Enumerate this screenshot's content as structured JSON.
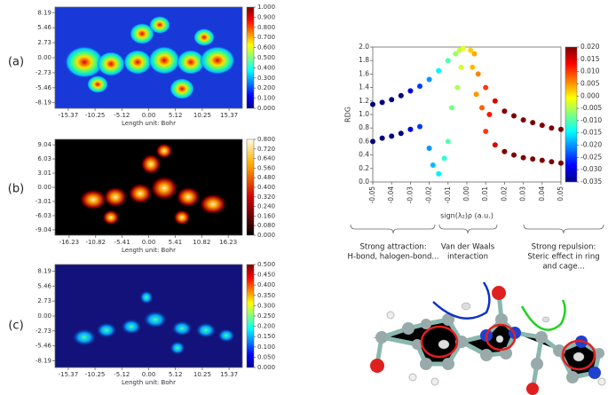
{
  "chart_data": [
    {
      "type": "heatmap",
      "panel_label": "(a)",
      "xlabel": "Length unit: Bohr",
      "colormap": "jet",
      "xlim": [
        -17.9,
        17.9
      ],
      "ylim": [
        -9.2,
        9.2
      ],
      "xticks": [
        -15.37,
        -10.25,
        -5.12,
        {
          "value": 0,
          "label": "0.00"
        },
        5.12,
        10.25,
        15.37
      ],
      "yticks": [
        8.19,
        5.46,
        2.73,
        {
          "value": 0,
          "label": "0.00"
        },
        -2.73,
        -5.46,
        -8.19
      ],
      "clim": [
        0,
        1
      ],
      "cticks": [
        {
          "value": 0,
          "label": "0.000"
        },
        {
          "value": 0.1,
          "label": "0.100"
        },
        {
          "value": 0.2,
          "label": "0.200"
        },
        {
          "value": 0.3,
          "label": "0.300"
        },
        {
          "value": 0.4,
          "label": "0.400"
        },
        {
          "value": 0.5,
          "label": "0.500"
        },
        {
          "value": 0.6,
          "label": "0.600"
        },
        {
          "value": 0.7,
          "label": "0.700"
        },
        {
          "value": 0.8,
          "label": "0.800"
        },
        {
          "value": 0.9,
          "label": "0.900"
        },
        {
          "value": 1,
          "label": "1.000"
        }
      ]
    },
    {
      "type": "heatmap",
      "panel_label": "(b)",
      "xlabel": "Length unit: Bohr",
      "colormap": "hot",
      "xlim": [
        -19.1,
        19.1
      ],
      "ylim": [
        -10.2,
        10.2
      ],
      "xticks": [
        -16.23,
        -10.82,
        -5.41,
        {
          "value": 0,
          "label": "0.00"
        },
        5.41,
        10.82,
        16.23
      ],
      "yticks": [
        9.04,
        6.03,
        3.01,
        {
          "value": 0,
          "label": "0.00"
        },
        -3.01,
        -6.03,
        -9.04
      ],
      "clim": [
        0,
        0.8
      ],
      "cticks": [
        {
          "value": 0,
          "label": "0.000"
        },
        {
          "value": 0.08,
          "label": "0.080"
        },
        {
          "value": 0.16,
          "label": "0.160"
        },
        {
          "value": 0.24,
          "label": "0.240"
        },
        {
          "value": 0.32,
          "label": "0.320"
        },
        {
          "value": 0.4,
          "label": "0.400"
        },
        {
          "value": 0.48,
          "label": "0.480"
        },
        {
          "value": 0.56,
          "label": "0.560"
        },
        {
          "value": 0.64,
          "label": "0.640"
        },
        {
          "value": 0.72,
          "label": "0.720"
        },
        {
          "value": 0.8,
          "label": "0.800"
        }
      ]
    },
    {
      "type": "heatmap",
      "panel_label": "(c)",
      "xlabel": "Length unit: Bohr",
      "colormap": "jet",
      "xlim": [
        -17.9,
        17.9
      ],
      "ylim": [
        -9.4,
        9.4
      ],
      "xticks": [
        -15.37,
        -10.25,
        -5.12,
        {
          "value": 0,
          "label": "0.00"
        },
        5.12,
        10.25,
        15.37
      ],
      "yticks": [
        8.19,
        5.46,
        2.73,
        {
          "value": 0,
          "label": "0.00"
        },
        -2.73,
        -5.46,
        -8.19
      ],
      "clim": [
        0,
        0.5
      ],
      "cticks": [
        {
          "value": 0,
          "label": "0.000"
        },
        {
          "value": 0.05,
          "label": "0.050"
        },
        {
          "value": 0.1,
          "label": "0.100"
        },
        {
          "value": 0.15,
          "label": "0.150"
        },
        {
          "value": 0.2,
          "label": "0.200"
        },
        {
          "value": 0.25,
          "label": "0.250"
        },
        {
          "value": 0.3,
          "label": "0.300"
        },
        {
          "value": 0.35,
          "label": "0.350"
        },
        {
          "value": 0.4,
          "label": "0.400"
        },
        {
          "value": 0.45,
          "label": "0.450"
        },
        {
          "value": 0.5,
          "label": "0.500"
        }
      ]
    },
    {
      "type": "scatter",
      "xlabel": "sign(λ₂)ρ (a.u.)",
      "ylabel": "RDG",
      "colormap": "jet",
      "xlim": [
        -0.05,
        0.05
      ],
      "ylim": [
        0,
        2
      ],
      "xticks": [
        -0.05,
        -0.04,
        -0.03,
        -0.02,
        -0.01,
        {
          "value": 0,
          "label": "0.00"
        },
        0.01,
        0.02,
        0.03,
        0.04,
        0.05
      ],
      "yticks": [
        {
          "value": 0,
          "label": "0.0"
        },
        0.2,
        0.4,
        0.6,
        0.8,
        {
          "value": 1,
          "label": "1.0"
        },
        1.2,
        1.4,
        1.6,
        1.8,
        {
          "value": 2,
          "label": "2.0"
        }
      ],
      "clim": [
        -0.035,
        0.02
      ],
      "cticks": [
        {
          "value": 0.02,
          "label": "0.020"
        },
        0.015,
        {
          "value": 0.01,
          "label": "0.010"
        },
        0.005,
        {
          "value": 0,
          "label": "0.000"
        },
        -0.005,
        {
          "value": -0.01,
          "label": "-0.010"
        },
        -0.015,
        {
          "value": -0.02,
          "label": "-0.020"
        },
        -0.025,
        {
          "value": -0.03,
          "label": "-0.030"
        },
        -0.035
      ],
      "x": [
        -0.05,
        -0.05,
        -0.045,
        -0.045,
        -0.04,
        -0.04,
        -0.035,
        -0.035,
        -0.03,
        -0.03,
        -0.025,
        -0.025,
        -0.02,
        -0.02,
        -0.018,
        -0.015,
        -0.015,
        -0.012,
        -0.01,
        -0.01,
        -0.008,
        -0.006,
        -0.005,
        -0.004,
        -0.003,
        -0.002,
        0.002,
        0.003,
        0.004,
        0.005,
        0.006,
        0.008,
        0.01,
        0.01,
        0.012,
        0.015,
        0.015,
        0.02,
        0.02,
        0.025,
        0.025,
        0.03,
        0.03,
        0.035,
        0.035,
        0.04,
        0.04,
        0.045,
        0.045,
        0.05,
        0.05
      ],
      "values": [
        1.15,
        0.6,
        1.18,
        0.65,
        1.22,
        0.68,
        1.28,
        0.72,
        1.35,
        0.78,
        1.42,
        0.82,
        1.52,
        0.5,
        0.25,
        1.65,
        0.12,
        0.35,
        1.8,
        0.6,
        1.1,
        1.9,
        1.4,
        1.95,
        1.7,
        1.98,
        1.95,
        1.7,
        1.9,
        1.3,
        1.6,
        1.1,
        1.4,
        0.75,
        1.0,
        1.2,
        0.55,
        1.05,
        0.45,
        0.98,
        0.4,
        0.92,
        0.36,
        0.88,
        0.34,
        0.84,
        0.32,
        0.8,
        0.3,
        0.78,
        0.28
      ],
      "annotations": [
        [
          "Strong attraction:",
          "H-bond, halogen-bond..."
        ],
        [
          "Van der Waals",
          "interaction"
        ],
        [
          "Strong repulsion:",
          "Steric effect in ring",
          "and cage..."
        ]
      ]
    }
  ]
}
